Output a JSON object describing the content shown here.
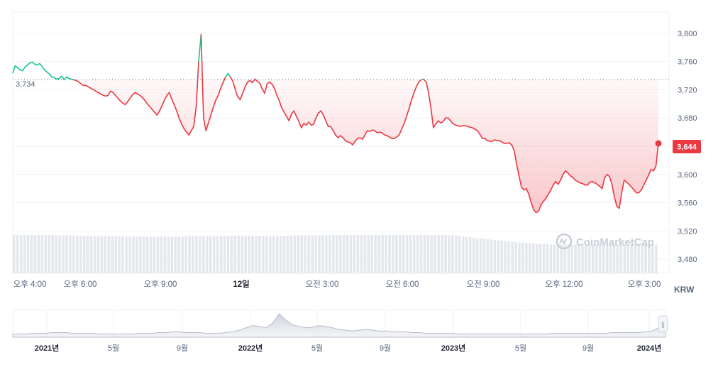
{
  "chart_data": {
    "type": "line",
    "currency": "KRW",
    "current_price_label": "3,644",
    "reference_price_label": "3,734",
    "reference_value": 3734,
    "watermark": "CoinMarketCap",
    "ylim": [
      3460,
      3830
    ],
    "yticks": [
      {
        "value": 3800,
        "label": "3,800"
      },
      {
        "value": 3760,
        "label": "3,760"
      },
      {
        "value": 3720,
        "label": "3,720"
      },
      {
        "value": 3680,
        "label": "3,680"
      },
      {
        "value": 3640,
        "label": "3,640"
      },
      {
        "value": 3600,
        "label": "3,600"
      },
      {
        "value": 3560,
        "label": "3,560"
      },
      {
        "value": 3520,
        "label": "3,520"
      },
      {
        "value": 3480,
        "label": "3,480"
      }
    ],
    "xticks": [
      {
        "label": "오후 4:00"
      },
      {
        "label": "오후 6:00"
      },
      {
        "label": "오후 9:00"
      },
      {
        "label": "12일",
        "bold": true
      },
      {
        "label": "오전 3:00"
      },
      {
        "label": "오전 6:00"
      },
      {
        "label": "오전 9:00"
      },
      {
        "label": "오후 12:00"
      },
      {
        "label": "오후 3:00"
      }
    ],
    "price_points": [
      3744,
      3754,
      3751,
      3748,
      3747,
      3752,
      3755,
      3758,
      3759,
      3756,
      3755,
      3757,
      3753,
      3748,
      3745,
      3742,
      3738,
      3737,
      3735,
      3736,
      3739,
      3734,
      3738,
      3736,
      3735,
      3734,
      3733,
      3731,
      3728,
      3726,
      3726,
      3724,
      3722,
      3720,
      3718,
      3716,
      3714,
      3712,
      3711,
      3712,
      3718,
      3716,
      3712,
      3708,
      3704,
      3701,
      3699,
      3703,
      3708,
      3713,
      3716,
      3714,
      3712,
      3709,
      3705,
      3700,
      3696,
      3692,
      3688,
      3684,
      3690,
      3697,
      3705,
      3712,
      3716,
      3707,
      3699,
      3690,
      3680,
      3672,
      3665,
      3660,
      3656,
      3662,
      3668,
      3696,
      3760,
      3798,
      3680,
      3662,
      3673,
      3684,
      3695,
      3705,
      3712,
      3722,
      3730,
      3738,
      3743,
      3738,
      3732,
      3720,
      3710,
      3706,
      3715,
      3724,
      3731,
      3733,
      3730,
      3735,
      3732,
      3729,
      3721,
      3715,
      3728,
      3731,
      3728,
      3722,
      3712,
      3704,
      3694,
      3688,
      3682,
      3676,
      3686,
      3690,
      3682,
      3675,
      3666,
      3672,
      3670,
      3674,
      3670,
      3671,
      3680,
      3687,
      3690,
      3684,
      3676,
      3668,
      3668,
      3662,
      3656,
      3652,
      3655,
      3652,
      3648,
      3646,
      3645,
      3642,
      3647,
      3651,
      3652,
      3650,
      3656,
      3662,
      3661,
      3663,
      3662,
      3659,
      3660,
      3659,
      3656,
      3655,
      3653,
      3651,
      3651,
      3653,
      3656,
      3664,
      3672,
      3682,
      3693,
      3705,
      3715,
      3724,
      3731,
      3734,
      3735,
      3731,
      3716,
      3694,
      3666,
      3672,
      3676,
      3673,
      3675,
      3680,
      3680,
      3676,
      3672,
      3670,
      3669,
      3668,
      3669,
      3669,
      3668,
      3667,
      3666,
      3664,
      3662,
      3657,
      3651,
      3651,
      3648,
      3647,
      3647,
      3649,
      3648,
      3648,
      3646,
      3644,
      3644,
      3645,
      3642,
      3634,
      3615,
      3598,
      3582,
      3578,
      3580,
      3572,
      3560,
      3550,
      3546,
      3548,
      3557,
      3562,
      3566,
      3572,
      3578,
      3585,
      3590,
      3586,
      3592,
      3600,
      3605,
      3602,
      3598,
      3596,
      3592,
      3590,
      3588,
      3587,
      3585,
      3585,
      3589,
      3590,
      3588,
      3586,
      3583,
      3580,
      3595,
      3600,
      3597,
      3586,
      3568,
      3555,
      3552,
      3574,
      3592,
      3589,
      3586,
      3582,
      3578,
      3574,
      3574,
      3578,
      3585,
      3592,
      3599,
      3607,
      3605,
      3612,
      3644
    ],
    "price_colors": {
      "up": "#16c784",
      "down": "#ea3943"
    },
    "volume_bars": [
      100,
      100,
      100,
      100,
      100,
      100,
      100,
      100,
      100,
      100,
      100,
      100,
      100,
      99,
      99,
      99,
      99,
      99,
      98,
      98,
      98,
      98,
      97,
      97,
      97,
      97,
      97,
      97,
      97,
      97,
      97,
      96,
      96,
      96,
      96,
      96,
      96,
      96,
      96,
      96,
      96,
      96,
      96,
      96,
      96,
      96,
      96,
      96,
      96,
      96,
      97,
      97,
      97,
      97,
      97,
      97,
      97,
      97,
      97,
      98,
      98,
      98,
      98,
      98,
      98,
      98,
      98,
      98,
      98,
      98,
      98,
      98,
      98,
      98,
      98,
      98,
      98,
      98,
      98,
      98,
      99,
      99,
      99,
      99,
      99,
      99,
      99,
      99,
      99,
      99,
      100,
      100,
      100,
      100,
      100,
      100,
      100,
      100,
      100,
      100,
      100,
      100,
      100,
      100,
      100,
      100,
      100,
      100,
      100,
      100,
      100,
      100,
      100,
      100,
      100,
      100,
      100,
      100,
      100,
      100,
      100,
      100,
      100,
      100,
      99,
      99,
      98,
      97,
      96,
      95,
      94,
      93,
      92,
      91,
      90,
      89,
      88,
      87,
      86,
      85,
      84,
      83,
      82,
      81,
      80,
      80,
      79,
      78,
      78,
      77,
      77,
      76,
      76,
      75,
      75,
      75,
      75,
      75,
      75,
      75,
      75,
      75,
      75,
      75,
      75,
      75,
      75,
      75,
      75,
      75,
      75,
      75,
      75,
      75,
      75,
      75,
      75,
      75,
      75,
      75,
      75,
      75,
      75,
      75
    ],
    "navigator": {
      "labels": [
        {
          "label": "2021년",
          "bold": true
        },
        {
          "label": "5월"
        },
        {
          "label": "9월"
        },
        {
          "label": "2022년",
          "bold": true
        },
        {
          "label": "5월"
        },
        {
          "label": "9월"
        },
        {
          "label": "2023년",
          "bold": true
        },
        {
          "label": "5월"
        },
        {
          "label": "9월"
        },
        {
          "label": "2024년",
          "bold": true
        }
      ],
      "area_values": [
        4,
        4,
        4,
        5,
        5,
        5,
        6,
        6,
        6,
        5,
        5,
        5,
        5,
        4,
        4,
        4,
        4,
        4,
        4,
        5,
        5,
        5,
        6,
        6,
        7,
        7,
        6,
        6,
        6,
        5,
        5,
        5,
        6,
        7,
        9,
        12,
        15,
        14,
        12,
        18,
        30,
        22,
        16,
        14,
        12,
        13,
        15,
        14,
        12,
        10,
        9,
        8,
        9,
        10,
        9,
        8,
        8,
        7,
        7,
        7,
        6,
        6,
        5,
        5,
        5,
        5,
        5,
        4,
        4,
        4,
        4,
        4,
        4,
        4,
        4,
        4,
        4,
        4,
        4,
        4,
        4,
        5,
        5,
        5,
        5,
        5,
        5,
        5,
        5,
        5,
        6,
        6,
        6,
        6,
        6,
        7,
        8,
        12,
        20
      ],
      "handle_symbol": "||"
    }
  }
}
